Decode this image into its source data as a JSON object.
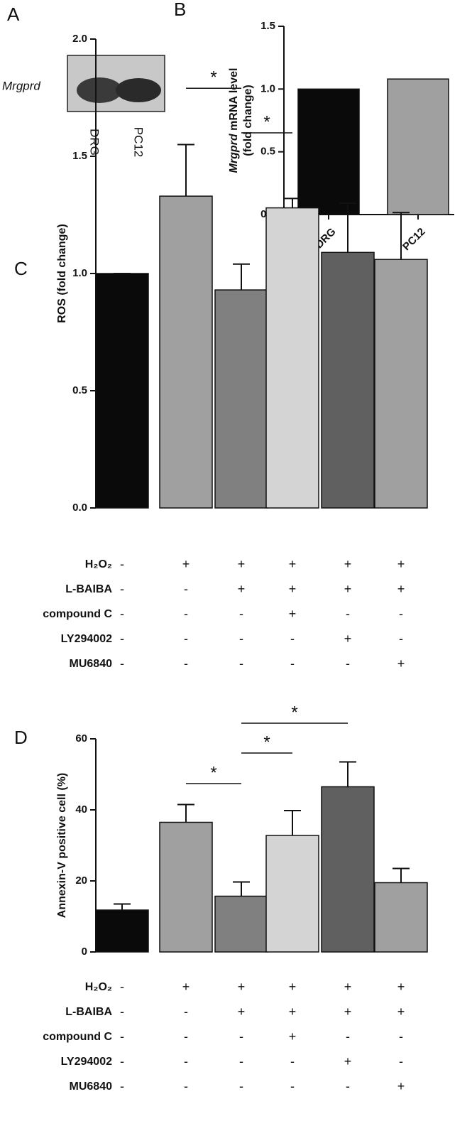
{
  "panel_a": {
    "letter": "A",
    "gene": "Mrgprd",
    "lanes": [
      "DRG",
      "PC12"
    ]
  },
  "chart_data": [
    {
      "type": "bar",
      "letter": "B",
      "ylabel": {
        "italic": "Mrgprd",
        "rest": "mRNA level",
        "line2": "(fold change)"
      },
      "categories": [
        "DRG",
        "PC12"
      ],
      "values": [
        1.0,
        1.08
      ],
      "colors": [
        "#0a0a0a",
        "#a0a0a0"
      ],
      "ylim": [
        0,
        1.5
      ],
      "yticks": [
        {
          "value": 0,
          "label": "0.0"
        },
        0.5,
        {
          "value": 1,
          "label": "1.0"
        },
        1.5
      ]
    },
    {
      "type": "bar",
      "letter": "C",
      "ylabel": "ROS (fold change)",
      "values": [
        1.0,
        1.33,
        0.93,
        1.28,
        1.09,
        1.06
      ],
      "errors": [
        0,
        0.22,
        0.11,
        0.04,
        0.21,
        0.2
      ],
      "colors": [
        "#0a0a0a",
        "#a0a0a0",
        "#808080",
        "#d4d4d4",
        "#606060",
        "#a0a0a0"
      ],
      "ylim": [
        0,
        2
      ],
      "yticks": [
        {
          "value": 0,
          "label": "0.0"
        },
        0.5,
        {
          "value": 1,
          "label": "1.0"
        },
        1.5,
        {
          "value": 2,
          "label": "2.0"
        }
      ],
      "significance": [
        {
          "from": 1,
          "to": 2,
          "level": 1.79,
          "label": "*"
        },
        {
          "from": 2,
          "to": 3,
          "level": 1.6,
          "label": "*"
        }
      ],
      "treatments": [
        {
          "name": "H₂O₂",
          "marks": [
            "-",
            "+",
            "+",
            "+",
            "+",
            "+"
          ]
        },
        {
          "name": "L-BAIBA",
          "marks": [
            "-",
            "-",
            "+",
            "+",
            "+",
            "+"
          ]
        },
        {
          "name": "compound C",
          "marks": [
            "-",
            "-",
            "-",
            "+",
            "-",
            "-"
          ]
        },
        {
          "name": "LY294002",
          "marks": [
            "-",
            "-",
            "-",
            "-",
            "+",
            "-"
          ]
        },
        {
          "name": "MU6840",
          "marks": [
            "-",
            "-",
            "-",
            "-",
            "-",
            "+"
          ]
        }
      ]
    },
    {
      "type": "bar",
      "letter": "D",
      "ylabel": "Annexin-V positive cell (%)",
      "values": [
        11.8,
        36.5,
        15.7,
        32.8,
        46.5,
        19.5
      ],
      "errors": [
        1.7,
        5,
        4,
        7,
        7,
        4
      ],
      "colors": [
        "#0a0a0a",
        "#a0a0a0",
        "#808080",
        "#d4d4d4",
        "#606060",
        "#a0a0a0"
      ],
      "ylim": [
        0,
        60
      ],
      "yticks": [
        0,
        20,
        40,
        60
      ],
      "significance": [
        {
          "from": 1,
          "to": 2,
          "level": 47.4,
          "label": "*"
        },
        {
          "from": 2,
          "to": 3,
          "level": 56,
          "label": "*"
        },
        {
          "from": 2,
          "to": 4,
          "level": 64.4,
          "label": "*"
        }
      ],
      "treatments": [
        {
          "name": "H₂O₂",
          "marks": [
            "-",
            "+",
            "+",
            "+",
            "+",
            "+"
          ]
        },
        {
          "name": "L-BAIBA",
          "marks": [
            "-",
            "-",
            "+",
            "+",
            "+",
            "+"
          ]
        },
        {
          "name": "compound C",
          "marks": [
            "-",
            "-",
            "-",
            "+",
            "-",
            "-"
          ]
        },
        {
          "name": "LY294002",
          "marks": [
            "-",
            "-",
            "-",
            "-",
            "+",
            "-"
          ]
        },
        {
          "name": "MU6840",
          "marks": [
            "-",
            "-",
            "-",
            "-",
            "-",
            "+"
          ]
        }
      ]
    }
  ]
}
